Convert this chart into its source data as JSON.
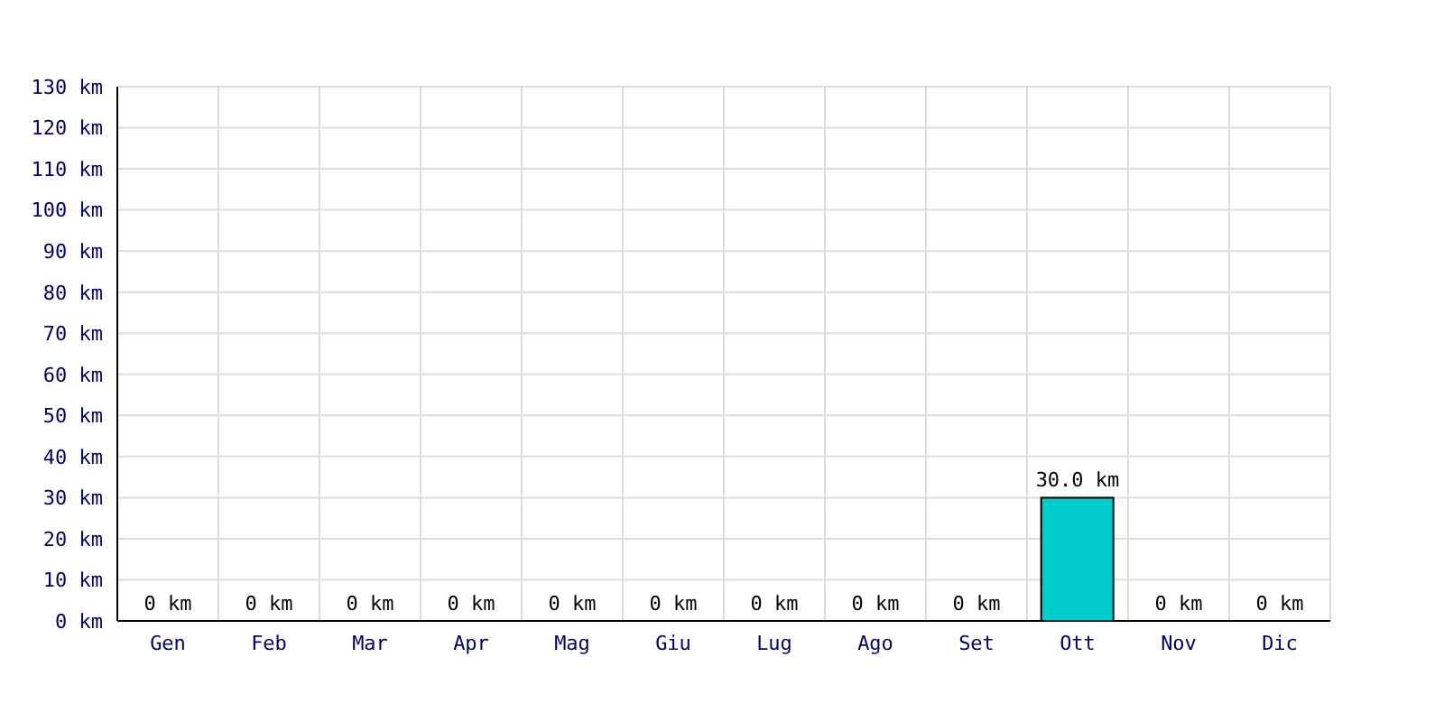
{
  "chart_data": {
    "type": "bar",
    "categories": [
      "Gen",
      "Feb",
      "Mar",
      "Apr",
      "Mag",
      "Giu",
      "Lug",
      "Ago",
      "Set",
      "Ott",
      "Nov",
      "Dic"
    ],
    "values": [
      0,
      0,
      0,
      0,
      0,
      0,
      0,
      0,
      0,
      30,
      0,
      0
    ],
    "value_labels": [
      "0 km",
      "0 km",
      "0 km",
      "0 km",
      "0 km",
      "0 km",
      "0 km",
      "0 km",
      "0 km",
      "30.0 km",
      "0 km",
      "0 km"
    ],
    "color": "#00cccc",
    "ylim": [
      0,
      130
    ],
    "yticks": [
      {
        "value": 0,
        "label": "0 km"
      },
      {
        "value": 10,
        "label": "10 km"
      },
      {
        "value": 20,
        "label": "20 km"
      },
      {
        "value": 30,
        "label": "30 km"
      },
      {
        "value": 40,
        "label": "40 km"
      },
      {
        "value": 50,
        "label": "50 km"
      },
      {
        "value": 60,
        "label": "60 km"
      },
      {
        "value": 70,
        "label": "70 km"
      },
      {
        "value": 80,
        "label": "80 km"
      },
      {
        "value": 90,
        "label": "90 km"
      },
      {
        "value": 100,
        "label": "100 km"
      },
      {
        "value": 110,
        "label": "110 km"
      },
      {
        "value": 120,
        "label": "120 km"
      },
      {
        "value": 130,
        "label": "130 km"
      }
    ],
    "grid": true
  }
}
